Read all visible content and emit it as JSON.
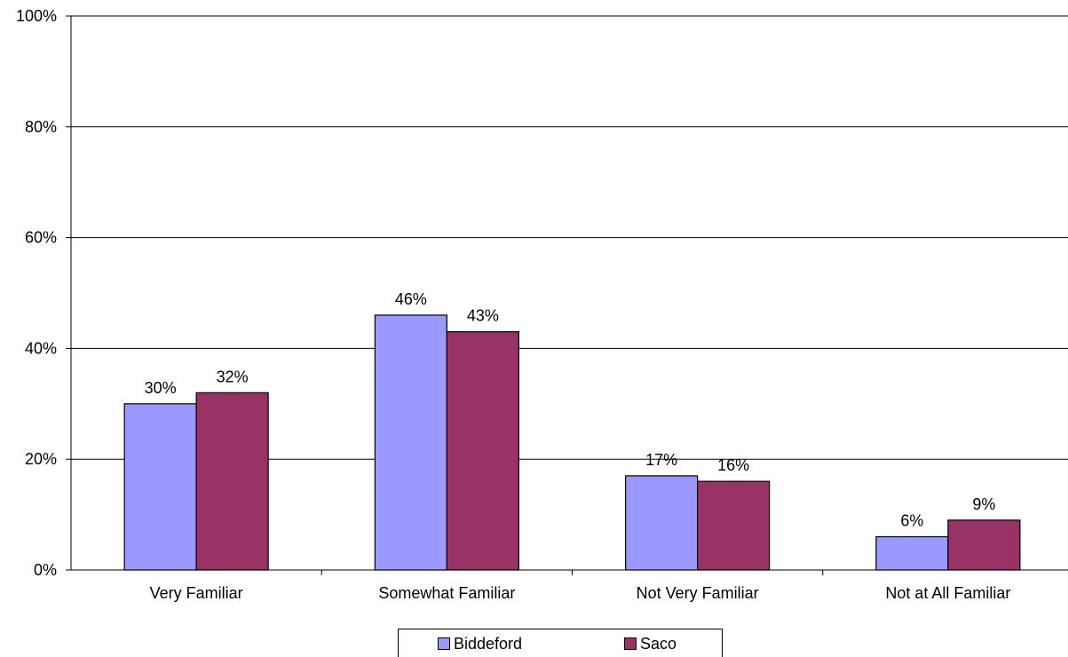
{
  "chart_data": {
    "type": "bar",
    "categories": [
      "Very Familiar",
      "Somewhat Familiar",
      "Not Very Familiar",
      "Not at All Familiar"
    ],
    "series": [
      {
        "name": "Biddeford",
        "values": [
          30,
          46,
          17,
          6
        ],
        "labels": [
          "30%",
          "46%",
          "17%",
          "6%"
        ],
        "color": "#9999ff"
      },
      {
        "name": "Saco",
        "values": [
          32,
          43,
          16,
          9
        ],
        "labels": [
          "32%",
          "43%",
          "16%",
          "9%"
        ],
        "color": "#993366"
      }
    ],
    "ylim": [
      0,
      100
    ],
    "yticks": [
      "0%",
      "20%",
      "40%",
      "60%",
      "80%",
      "100%"
    ],
    "grid": true,
    "legend_position": "bottom"
  }
}
